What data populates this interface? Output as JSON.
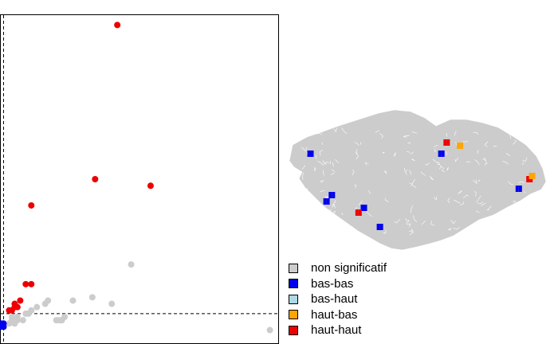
{
  "chart_data": [
    {
      "type": "scatter",
      "title": "",
      "xlabel": "",
      "ylabel": "",
      "xlim": [
        0,
        100
      ],
      "ylim": [
        0,
        100
      ],
      "reference_lines": {
        "x": 1,
        "y": 9
      },
      "series": [
        {
          "category": "non-significatif",
          "color": "#cccccc",
          "points": [
            [
              26,
              13
            ],
            [
              33,
              14
            ],
            [
              47,
              24
            ],
            [
              40,
              12
            ],
            [
              13,
              11
            ],
            [
              16,
              12
            ],
            [
              17,
              13
            ],
            [
              11,
              10
            ],
            [
              9,
              9
            ],
            [
              8,
              7
            ],
            [
              6,
              8
            ],
            [
              5,
              6
            ],
            [
              4,
              8
            ],
            [
              4,
              7
            ],
            [
              3,
              6
            ],
            [
              6,
              7
            ],
            [
              21,
              7
            ],
            [
              20,
              7
            ],
            [
              22,
              7
            ],
            [
              23,
              8
            ],
            [
              97,
              4
            ],
            [
              10,
              9
            ]
          ]
        },
        {
          "category": "bas-bas",
          "color": "#0000ee",
          "points": [
            [
              0,
              6
            ],
            [
              0,
              5
            ],
            [
              1,
              6
            ],
            [
              0,
              5.5
            ],
            [
              1,
              5
            ]
          ]
        },
        {
          "category": "haut-haut",
          "color": "#ee0000",
          "points": [
            [
              42,
              97
            ],
            [
              34,
              50
            ],
            [
              54,
              48
            ],
            [
              11,
              42
            ],
            [
              9,
              18
            ],
            [
              11,
              18
            ],
            [
              7,
              13
            ],
            [
              6,
              11
            ],
            [
              5,
              11
            ],
            [
              4,
              10
            ],
            [
              5,
              12
            ],
            [
              3,
              10
            ]
          ]
        }
      ]
    }
  ],
  "legend": [
    {
      "label": "non significatif",
      "color": "#cccccc"
    },
    {
      "label": "bas-bas",
      "color": "#0000ee"
    },
    {
      "label": "bas-haut",
      "color": "#add8e6"
    },
    {
      "label": "haut-bas",
      "color": "#ffa500"
    },
    {
      "label": "haut-haut",
      "color": "#ee0000"
    }
  ],
  "map": {
    "background_fill": "#cccccc",
    "clusters": [
      {
        "category": "bas-bas",
        "color": "#0000ee",
        "lon": 0.59,
        "lat": 0.36
      },
      {
        "category": "bas-bas",
        "color": "#0000ee",
        "lon": 0.3,
        "lat": 0.7
      },
      {
        "category": "bas-bas",
        "color": "#0000ee",
        "lon": 0.36,
        "lat": 0.82
      },
      {
        "category": "bas-bas",
        "color": "#0000ee",
        "lon": 0.18,
        "lat": 0.62
      },
      {
        "category": "bas-bas",
        "color": "#0000ee",
        "lon": 0.16,
        "lat": 0.66
      },
      {
        "category": "bas-bas",
        "color": "#0000ee",
        "lon": 0.88,
        "lat": 0.58
      },
      {
        "category": "bas-bas",
        "color": "#0000ee",
        "lon": 0.1,
        "lat": 0.36
      },
      {
        "category": "haut-haut",
        "color": "#ee0000",
        "lon": 0.28,
        "lat": 0.73
      },
      {
        "category": "haut-haut",
        "color": "#ee0000",
        "lon": 0.92,
        "lat": 0.52
      },
      {
        "category": "haut-haut",
        "color": "#ee0000",
        "lon": 0.61,
        "lat": 0.29
      },
      {
        "category": "haut-bas",
        "color": "#ffa500",
        "lon": 0.66,
        "lat": 0.31
      },
      {
        "category": "haut-bas",
        "color": "#ffa500",
        "lon": 0.93,
        "lat": 0.5
      }
    ]
  }
}
